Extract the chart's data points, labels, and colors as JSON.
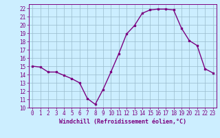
{
  "xlabel": "Windchill (Refroidissement éolien,°C)",
  "x": [
    0,
    1,
    2,
    3,
    4,
    5,
    6,
    7,
    8,
    9,
    10,
    11,
    12,
    13,
    14,
    15,
    16,
    17,
    18,
    19,
    20,
    21,
    22,
    23
  ],
  "y": [
    15.0,
    14.9,
    14.3,
    14.3,
    13.9,
    13.5,
    13.0,
    11.1,
    10.4,
    12.2,
    14.3,
    16.5,
    18.9,
    19.9,
    21.4,
    21.8,
    21.9,
    21.9,
    21.8,
    19.6,
    18.1,
    17.5,
    14.7,
    14.2
  ],
  "line_color": "#7B0080",
  "marker": "s",
  "marker_size": 2.0,
  "bg_color": "#cceeff",
  "grid_color": "#99bbcc",
  "ylim": [
    10,
    22.5
  ],
  "yticks": [
    10,
    11,
    12,
    13,
    14,
    15,
    16,
    17,
    18,
    19,
    20,
    21,
    22
  ],
  "xlim": [
    -0.5,
    23.5
  ],
  "xticks": [
    0,
    1,
    2,
    3,
    4,
    5,
    6,
    7,
    8,
    9,
    10,
    11,
    12,
    13,
    14,
    15,
    16,
    17,
    18,
    19,
    20,
    21,
    22,
    23
  ],
  "tick_fontsize": 5.5,
  "label_fontsize": 6.0,
  "line_width": 1.0
}
